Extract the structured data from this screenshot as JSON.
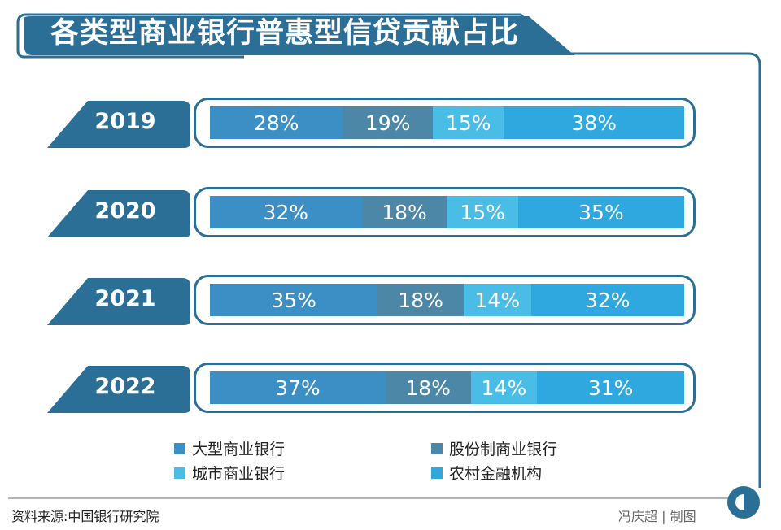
{
  "title": "各类型商业银行普惠型信贷贡献占比",
  "colors": {
    "frame": "#2b6f96",
    "title_bg": "#2b6f96",
    "year_tab": "#2b6f96"
  },
  "chart_data": {
    "type": "bar",
    "stacked": true,
    "orientation": "horizontal",
    "unit": "%",
    "categories": [
      "2019",
      "2020",
      "2021",
      "2022"
    ],
    "series": [
      {
        "name": "大型商业银行",
        "color": "#3b8fc4",
        "values": [
          28,
          32,
          35,
          37
        ]
      },
      {
        "name": "股份制商业银行",
        "color": "#4d87a8",
        "values": [
          19,
          18,
          18,
          18
        ]
      },
      {
        "name": "城市商业银行",
        "color": "#49bde6",
        "values": [
          15,
          15,
          14,
          14
        ]
      },
      {
        "name": "农村金融机构",
        "color": "#2ea8df",
        "values": [
          38,
          35,
          32,
          31
        ]
      }
    ],
    "legend_position": "bottom"
  },
  "footer": {
    "source": "资料来源:中国银行研究院",
    "credit": "冯庆超 | 制图"
  }
}
